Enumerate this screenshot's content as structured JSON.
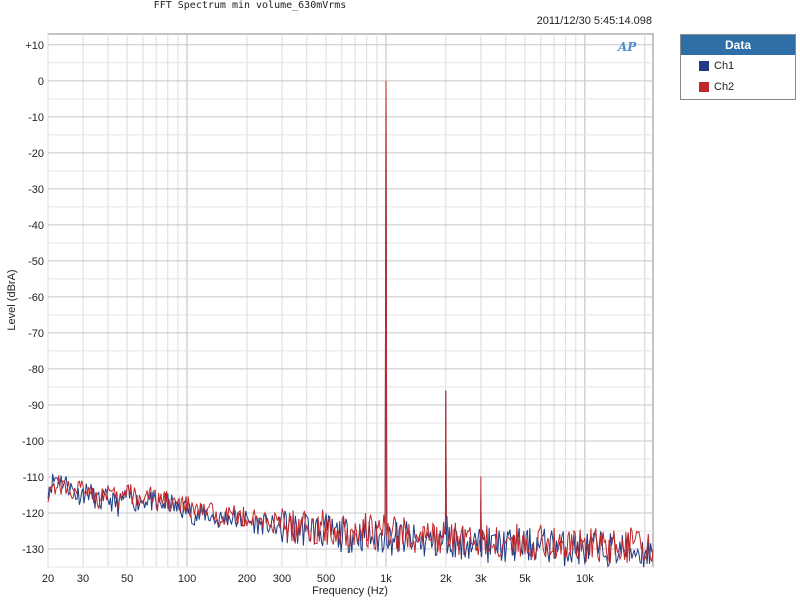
{
  "title": "FFT Spectrum min volume_630mVrms",
  "timestamp": "2011/12/30 5:45:14.098",
  "logo_text": "AP",
  "legend": {
    "header": "Data",
    "items": [
      {
        "label": "Ch1",
        "color": "#1f3b86"
      },
      {
        "label": "Ch2",
        "color": "#c0282a"
      }
    ]
  },
  "chart_data": {
    "type": "line",
    "title": "FFT Spectrum min volume_630mVrms",
    "xlabel": "Frequency (Hz)",
    "ylabel": "Level (dBrA)",
    "xscale": "log",
    "xlim": [
      20,
      22000
    ],
    "ylim": [
      -135,
      13
    ],
    "grid": true,
    "legend_position": "right",
    "x_tick_labels": [
      {
        "value": 20,
        "label": "20"
      },
      {
        "value": 30,
        "label": "30"
      },
      {
        "value": 50,
        "label": "50"
      },
      {
        "value": 100,
        "label": "100"
      },
      {
        "value": 200,
        "label": "200"
      },
      {
        "value": 300,
        "label": "300"
      },
      {
        "value": 500,
        "label": "500"
      },
      {
        "value": 1000,
        "label": "1k"
      },
      {
        "value": 2000,
        "label": "2k"
      },
      {
        "value": 3000,
        "label": "3k"
      },
      {
        "value": 5000,
        "label": "5k"
      },
      {
        "value": 10000,
        "label": "10k"
      }
    ],
    "y_tick_labels": [
      {
        "value": 10,
        "label": "+10"
      },
      {
        "value": 0,
        "label": "0"
      },
      {
        "value": -10,
        "label": "-10"
      },
      {
        "value": -20,
        "label": "-20"
      },
      {
        "value": -30,
        "label": "-30"
      },
      {
        "value": -40,
        "label": "-40"
      },
      {
        "value": -50,
        "label": "-50"
      },
      {
        "value": -60,
        "label": "-60"
      },
      {
        "value": -70,
        "label": "-70"
      },
      {
        "value": -80,
        "label": "-80"
      },
      {
        "value": -90,
        "label": "-90"
      },
      {
        "value": -100,
        "label": "-100"
      },
      {
        "value": -110,
        "label": "-110"
      },
      {
        "value": -120,
        "label": "-120"
      },
      {
        "value": -130,
        "label": "-130"
      }
    ],
    "series": [
      {
        "name": "Ch1",
        "color": "#1f3b86",
        "x": [
          20,
          22,
          25,
          28,
          32,
          36,
          40,
          45,
          50,
          56,
          63,
          71,
          80,
          90,
          100,
          112,
          125,
          140,
          160,
          180,
          200,
          224,
          250,
          280,
          315,
          355,
          400,
          450,
          500,
          560,
          630,
          710,
          800,
          900,
          960,
          990,
          1000,
          1010,
          1040,
          1100,
          1250,
          1400,
          1600,
          1800,
          1950,
          1990,
          2000,
          2010,
          2050,
          2200,
          2500,
          2800,
          2950,
          2990,
          3000,
          3010,
          3050,
          3300,
          3700,
          4200,
          5000,
          6000,
          7000,
          8000,
          10000,
          12000,
          14000,
          17000,
          20000,
          22000
        ],
        "y": [
          -113,
          -110,
          -112,
          -115,
          -114,
          -117,
          -116,
          -118,
          -115,
          -117,
          -116,
          -118,
          -117,
          -119,
          -119,
          -121,
          -120,
          -122,
          -121,
          -122,
          -122,
          -123,
          -123,
          -124,
          -124,
          -125,
          -124,
          -125,
          -125,
          -126,
          -126,
          -126,
          -126,
          -127,
          -127,
          -125,
          -0.5,
          -125,
          -127,
          -127,
          -127,
          -128,
          -128,
          -128,
          -128,
          -126,
          -86,
          -126,
          -128,
          -128,
          -128,
          -129,
          -129,
          -127,
          -111,
          -127,
          -129,
          -129,
          -129,
          -129,
          -129,
          -129,
          -129,
          -130,
          -130,
          -130,
          -130,
          -130,
          -131,
          -131
        ]
      },
      {
        "name": "Ch2",
        "color": "#c0282a",
        "x": [
          20,
          22,
          25,
          28,
          32,
          36,
          40,
          45,
          50,
          56,
          63,
          71,
          80,
          90,
          100,
          112,
          125,
          140,
          160,
          180,
          200,
          224,
          250,
          280,
          315,
          355,
          400,
          450,
          500,
          560,
          630,
          710,
          800,
          900,
          960,
          990,
          1000,
          1010,
          1040,
          1100,
          1250,
          1400,
          1600,
          1800,
          1950,
          1990,
          2000,
          2010,
          2050,
          2200,
          2500,
          2800,
          2950,
          2990,
          3000,
          3010,
          3050,
          3300,
          3700,
          4200,
          5000,
          6000,
          7000,
          8000,
          10000,
          12000,
          14000,
          17000,
          20000,
          22000
        ],
        "y": [
          -114,
          -112,
          -113,
          -114,
          -113,
          -116,
          -114,
          -117,
          -114,
          -116,
          -115,
          -117,
          -116,
          -118,
          -118,
          -120,
          -119,
          -121,
          -120,
          -121,
          -121,
          -122,
          -122,
          -123,
          -123,
          -124,
          -123,
          -124,
          -124,
          -125,
          -125,
          -125,
          -125,
          -126,
          -126,
          -124,
          0,
          -124,
          -126,
          -126,
          -126,
          -127,
          -127,
          -127,
          -127,
          -125,
          -86,
          -125,
          -127,
          -127,
          -127,
          -128,
          -128,
          -126,
          -111,
          -126,
          -128,
          -128,
          -128,
          -128,
          -128,
          -128,
          -128,
          -129,
          -129,
          -129,
          -129,
          -129,
          -130,
          -130
        ]
      }
    ]
  }
}
